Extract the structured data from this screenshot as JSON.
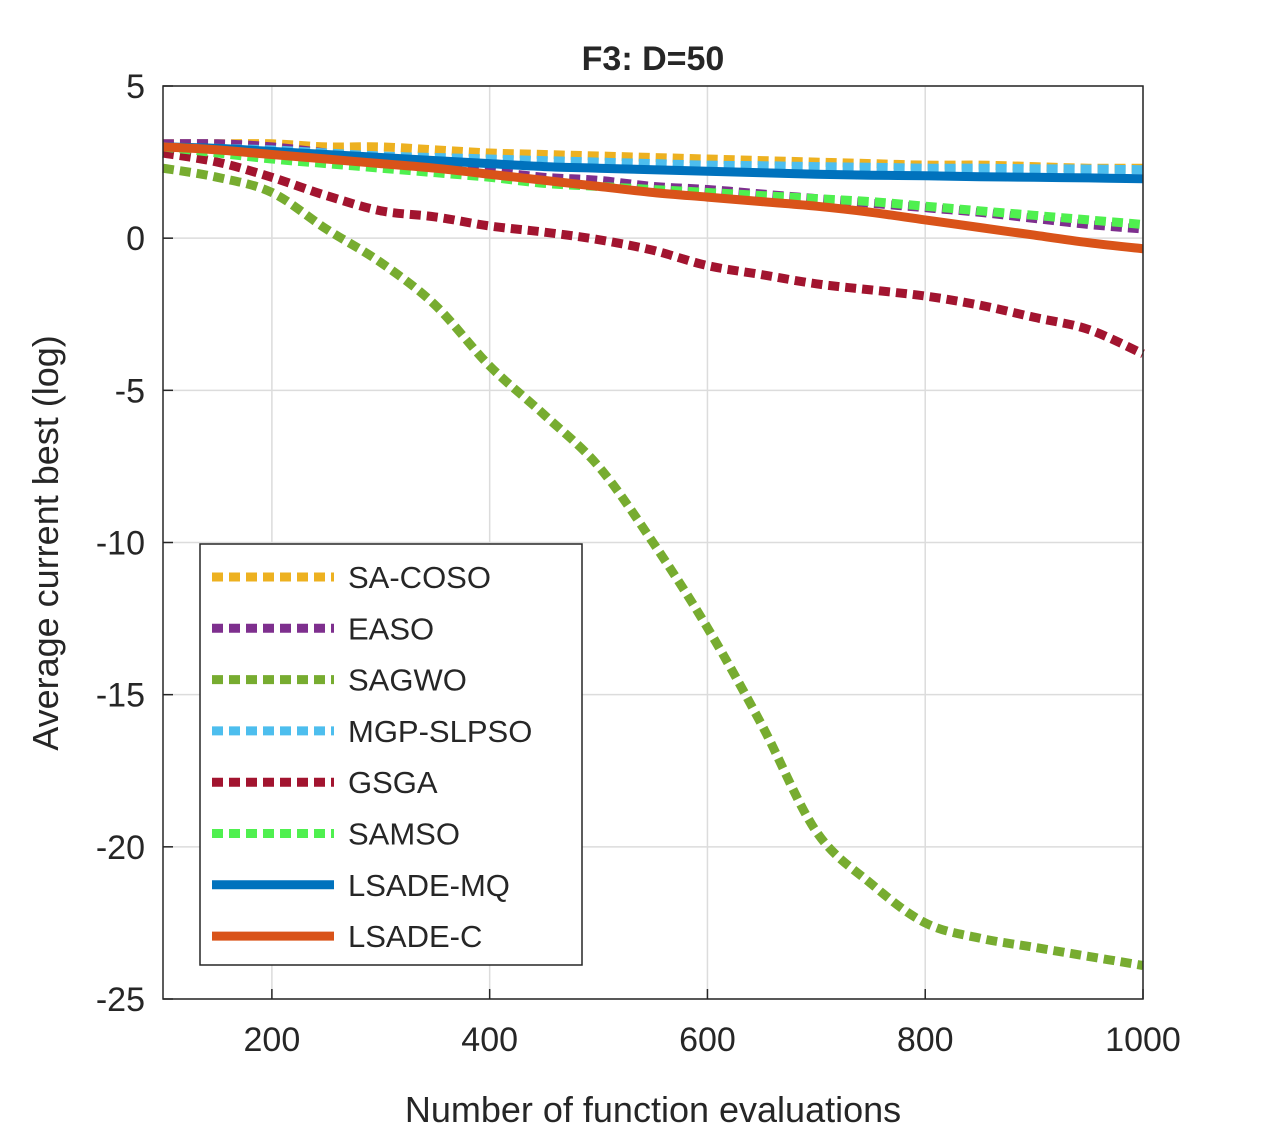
{
  "chart_data": {
    "type": "line",
    "title": "F3: D=50",
    "xlabel": "Number of function evaluations",
    "ylabel": "Average current best (log)",
    "xlim": [
      100,
      1000
    ],
    "ylim": [
      -25,
      5
    ],
    "xticks": [
      200,
      400,
      600,
      800,
      1000
    ],
    "yticks": [
      5,
      0,
      -5,
      -10,
      -15,
      -20,
      -25
    ],
    "grid": true,
    "legend_position": "bottom-left",
    "x": [
      100,
      150,
      200,
      250,
      300,
      350,
      400,
      450,
      500,
      550,
      600,
      650,
      700,
      750,
      800,
      850,
      900,
      950,
      1000
    ],
    "series": [
      {
        "name": "SA-COSO",
        "color": "#EDB120",
        "style": "dotted",
        "values": [
          3.1,
          3.1,
          3.1,
          3.0,
          3.0,
          2.9,
          2.8,
          2.75,
          2.7,
          2.65,
          2.6,
          2.55,
          2.5,
          2.45,
          2.4,
          2.4,
          2.35,
          2.3,
          2.3
        ]
      },
      {
        "name": "EASO",
        "color": "#7E2F8E",
        "style": "dotted",
        "values": [
          3.1,
          3.1,
          3.0,
          2.8,
          2.6,
          2.4,
          2.2,
          2.0,
          1.9,
          1.7,
          1.6,
          1.45,
          1.3,
          1.15,
          1.0,
          0.85,
          0.65,
          0.45,
          0.3
        ]
      },
      {
        "name": "SAGWO",
        "color": "#77AC30",
        "style": "dotted",
        "values": [
          2.3,
          2.0,
          1.5,
          0.3,
          -0.8,
          -2.2,
          -4.2,
          -5.8,
          -7.5,
          -10.0,
          -12.8,
          -16.0,
          -19.5,
          -21.2,
          -22.5,
          -23.0,
          -23.3,
          -23.6,
          -23.9
        ]
      },
      {
        "name": "MGP-SLPSO",
        "color": "#4DBEEE",
        "style": "dotted",
        "values": [
          3.0,
          2.95,
          2.9,
          2.8,
          2.7,
          2.65,
          2.6,
          2.55,
          2.5,
          2.45,
          2.4,
          2.38,
          2.35,
          2.33,
          2.3,
          2.3,
          2.28,
          2.27,
          2.25
        ]
      },
      {
        "name": "GSGA",
        "color": "#A2142F",
        "style": "dotted",
        "values": [
          2.8,
          2.5,
          2.0,
          1.4,
          0.9,
          0.7,
          0.4,
          0.2,
          -0.05,
          -0.4,
          -0.9,
          -1.2,
          -1.5,
          -1.7,
          -1.9,
          -2.2,
          -2.6,
          -3.0,
          -3.8
        ]
      },
      {
        "name": "SAMSO",
        "color": "#4FF04F",
        "style": "dotted",
        "values": [
          3.0,
          2.8,
          2.6,
          2.45,
          2.3,
          2.15,
          2.0,
          1.8,
          1.7,
          1.6,
          1.5,
          1.4,
          1.3,
          1.2,
          1.05,
          0.9,
          0.75,
          0.6,
          0.45
        ]
      },
      {
        "name": "LSADE-MQ",
        "color": "#0072BD",
        "style": "solid",
        "values": [
          3.0,
          2.95,
          2.85,
          2.75,
          2.65,
          2.55,
          2.45,
          2.35,
          2.3,
          2.25,
          2.2,
          2.15,
          2.1,
          2.07,
          2.05,
          2.02,
          2.0,
          1.98,
          1.95
        ]
      },
      {
        "name": "LSADE-C",
        "color": "#D95319",
        "style": "solid",
        "values": [
          3.0,
          2.9,
          2.75,
          2.6,
          2.45,
          2.3,
          2.1,
          1.9,
          1.7,
          1.5,
          1.35,
          1.2,
          1.05,
          0.85,
          0.6,
          0.35,
          0.1,
          -0.15,
          -0.35
        ]
      }
    ]
  }
}
